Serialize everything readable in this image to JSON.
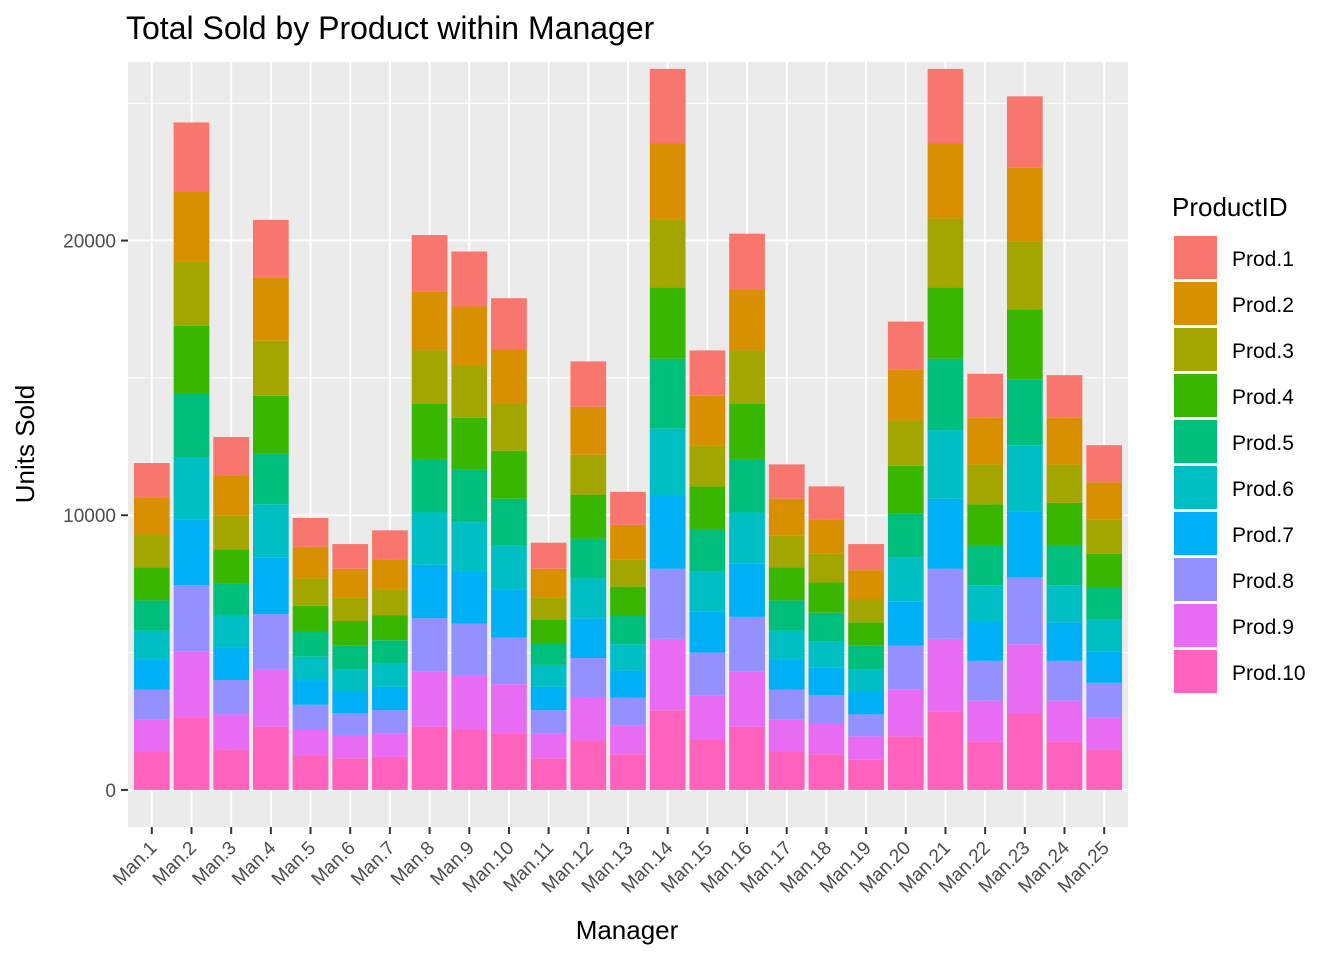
{
  "chart_data": {
    "type": "bar",
    "stacked": true,
    "title": "Total Sold by Product within Manager",
    "xlabel": "Manager",
    "ylabel": "Units Sold",
    "ylim": [
      -1350,
      26500
    ],
    "yticks": [
      0,
      10000,
      20000
    ],
    "ytick_labels": [
      "0",
      "10000",
      "20000"
    ],
    "grid": true,
    "legend": {
      "title": "ProductID",
      "position": "right"
    },
    "categories": [
      "Man.1",
      "Man.2",
      "Man.3",
      "Man.4",
      "Man.5",
      "Man.6",
      "Man.7",
      "Man.8",
      "Man.9",
      "Man.10",
      "Man.11",
      "Man.12",
      "Man.13",
      "Man.14",
      "Man.15",
      "Man.16",
      "Man.17",
      "Man.18",
      "Man.19",
      "Man.20",
      "Man.21",
      "Man.22",
      "Man.23",
      "Man.24",
      "Man.25"
    ],
    "series": [
      {
        "name": "Prod.1",
        "color": "#F8766D",
        "values": [
          1250,
          2500,
          1400,
          2100,
          1050,
          900,
          1050,
          2050,
          2000,
          1850,
          950,
          1650,
          1200,
          2700,
          1650,
          2050,
          1250,
          1200,
          950,
          1750,
          2700,
          1600,
          2600,
          1550,
          1350
        ]
      },
      {
        "name": "Prod.2",
        "color": "#D89000",
        "values": [
          1350,
          2550,
          1450,
          2300,
          1150,
          1050,
          1100,
          2150,
          2150,
          2000,
          1050,
          1750,
          1250,
          2800,
          1800,
          2200,
          1350,
          1250,
          1050,
          1850,
          2750,
          1700,
          2700,
          1700,
          1350
        ]
      },
      {
        "name": "Prod.3",
        "color": "#A3A500",
        "values": [
          1200,
          2350,
          1250,
          2000,
          1000,
          850,
          950,
          1950,
          1900,
          1700,
          800,
          1450,
          1000,
          2450,
          1500,
          1950,
          1150,
          1050,
          850,
          1650,
          2500,
          1450,
          2450,
          1400,
          1250
        ]
      },
      {
        "name": "Prod.4",
        "color": "#39B600",
        "values": [
          1200,
          2450,
          1250,
          2100,
          950,
          900,
          900,
          2000,
          1900,
          1750,
          850,
          1600,
          1050,
          2600,
          1550,
          2000,
          1200,
          1100,
          850,
          1750,
          2600,
          1500,
          2550,
          1550,
          1250
        ]
      },
      {
        "name": "Prod.5",
        "color": "#00BF7D",
        "values": [
          1100,
          2350,
          1150,
          1850,
          900,
          850,
          850,
          1950,
          1900,
          1700,
          800,
          1450,
          1050,
          2550,
          1550,
          1950,
          1100,
          1050,
          850,
          1600,
          2600,
          1450,
          2400,
          1450,
          1150
        ]
      },
      {
        "name": "Prod.6",
        "color": "#00BFC4",
        "values": [
          1050,
          2250,
          1150,
          1950,
          850,
          800,
          850,
          1900,
          1800,
          1600,
          800,
          1450,
          950,
          2450,
          1450,
          1850,
          1050,
          950,
          800,
          1600,
          2500,
          1300,
          2400,
          1350,
          1150
        ]
      },
      {
        "name": "Prod.7",
        "color": "#00B0F6",
        "values": [
          1100,
          2400,
          1200,
          2050,
          900,
          800,
          850,
          1950,
          1900,
          1750,
          850,
          1450,
          1000,
          2650,
          1500,
          1950,
          1100,
          1000,
          850,
          1600,
          2550,
          1450,
          2400,
          1400,
          1150
        ]
      },
      {
        "name": "Prod.8",
        "color": "#9590FF",
        "values": [
          1100,
          2400,
          1250,
          2000,
          900,
          800,
          850,
          1950,
          1900,
          1700,
          850,
          1450,
          1000,
          2550,
          1550,
          2000,
          1100,
          1050,
          800,
          1600,
          2550,
          1450,
          2450,
          1450,
          1250
        ]
      },
      {
        "name": "Prod.9",
        "color": "#E76BF3",
        "values": [
          1150,
          2400,
          1300,
          2100,
          950,
          850,
          850,
          2000,
          1950,
          1800,
          900,
          1550,
          1050,
          2600,
          1600,
          2000,
          1150,
          1100,
          850,
          1700,
          2650,
          1500,
          2500,
          1500,
          1200
        ]
      },
      {
        "name": "Prod.10",
        "color": "#FF62BC",
        "values": [
          1400,
          2650,
          1450,
          2300,
          1250,
          1150,
          1200,
          2300,
          2200,
          2050,
          1150,
          1800,
          1300,
          2900,
          1850,
          2300,
          1400,
          1300,
          1100,
          1950,
          2850,
          1750,
          2800,
          1750,
          1450
        ]
      }
    ]
  }
}
